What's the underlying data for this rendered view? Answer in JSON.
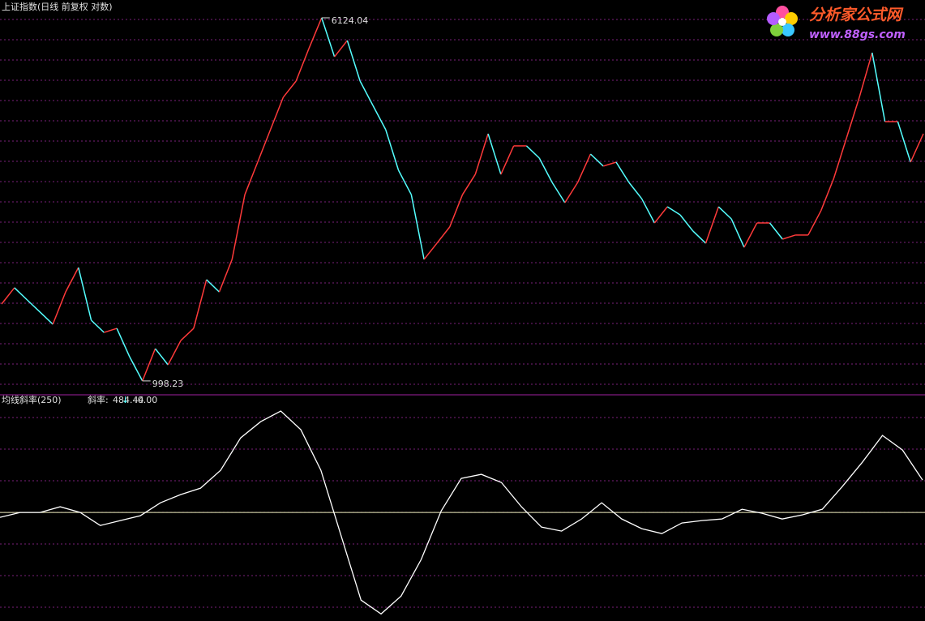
{
  "chart_data": [
    {
      "type": "line",
      "title": "上证指数(日线 前复权 对数)",
      "log_scale": true,
      "ylim": [
        939,
        6694
      ],
      "up_color": "#ff3a3a",
      "down_color": "#54ffff",
      "high": 6124.04,
      "low": 998.23,
      "series": [
        {
          "name": "上证指数",
          "values": [
            1466,
            1590,
            1496,
            1408,
            1325,
            1557,
            1759,
            1352,
            1272,
            1298,
            1126,
            998.23,
            1173,
            1082,
            1222,
            1298,
            1656,
            1557,
            1832,
            2532,
            2978,
            3503,
            4119,
            4465,
            5251,
            6124.04,
            5041,
            5468,
            4465,
            3954,
            3503,
            2860,
            2532,
            1832,
            1986,
            2154,
            2532,
            2802,
            3432,
            2802,
            3230,
            3230,
            3039,
            2691,
            2432,
            2691,
            3101,
            2919,
            2978,
            2691,
            2481,
            2198,
            2383,
            2289,
            2111,
            1986,
            2383,
            2243,
            1946,
            2198,
            2198,
            2027,
            2069,
            2069,
            2336,
            2746,
            3363,
            4119,
            5144,
            3646,
            3646,
            2978,
            3432
          ]
        }
      ]
    },
    {
      "type": "line",
      "title": "均线斜率(250)",
      "ylim": [
        -1620,
        1720
      ],
      "readout": {
        "label": "斜率:",
        "value": 484.44,
        "arrow": "↓"
      },
      "zero_line": {
        "value": 0,
        "label": ":0.00"
      },
      "series": [
        {
          "name": "斜率",
          "color": "#ffffff",
          "values": [
            -73,
            0,
            0,
            85,
            0,
            -194,
            -121,
            -48,
            145,
            266,
            363,
            630,
            1114,
            1356,
            1514,
            1235,
            630,
            -339,
            -1308,
            -1514,
            -1247,
            -702,
            24,
            509,
            569,
            448,
            85,
            -218,
            -278,
            -97,
            145,
            -97,
            -242,
            -315,
            -157,
            -121,
            -97,
            48,
            -12,
            -97,
            -36,
            48,
            388,
            751,
            1150,
            932,
            484.44
          ]
        }
      ]
    }
  ],
  "logo": {
    "name": "分析家公式网",
    "url": "www.88gs.com"
  }
}
